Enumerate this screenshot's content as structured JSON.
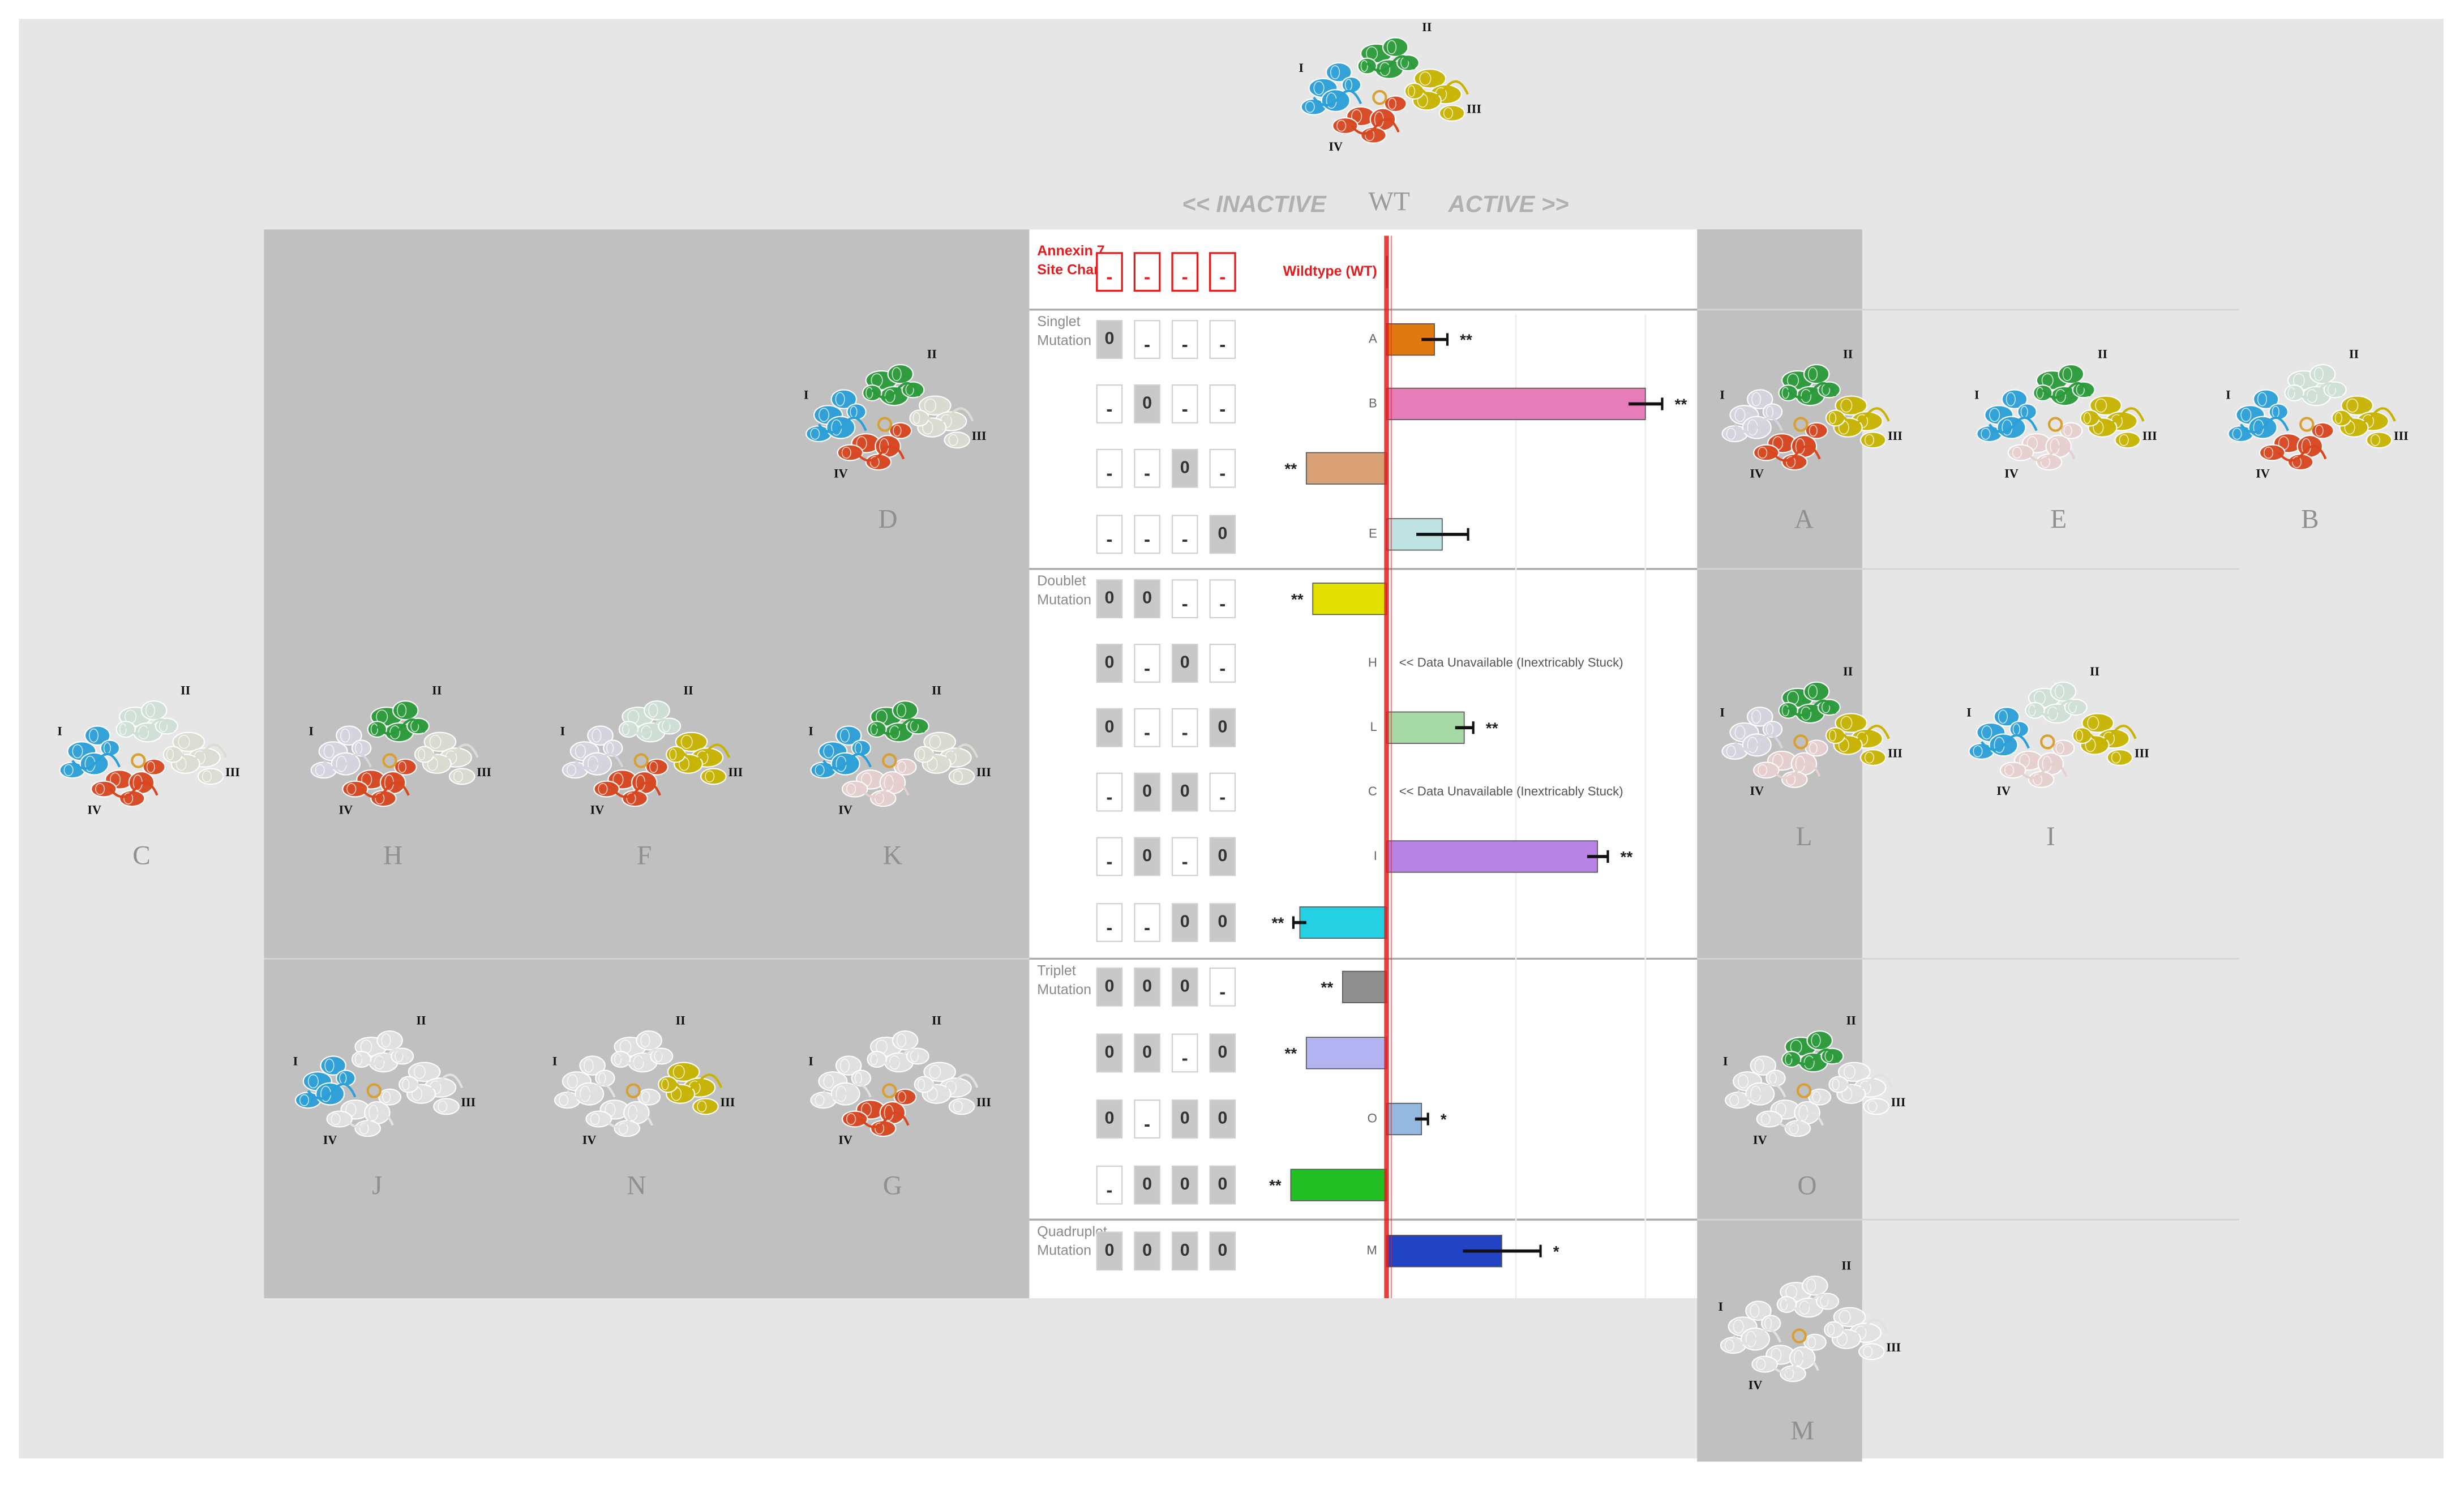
{
  "header": {
    "inactive": "<< INACTIVE",
    "wt": "WT",
    "active": "ACTIVE >>"
  },
  "site_charge_title": "Annexin 7 Site Charge",
  "groups": [
    "Singlet Mutation",
    "Doublet Mutation",
    "Triplet Mutation",
    "Quadruplet Mutation"
  ],
  "site_charges": [
    [
      "-",
      "-",
      "-",
      "-"
    ],
    [
      "0",
      "-",
      "-",
      "-"
    ],
    [
      "-",
      "0",
      "-",
      "-"
    ],
    [
      "-",
      "-",
      "0",
      "-"
    ],
    [
      "-",
      "-",
      "-",
      "0"
    ],
    [
      "0",
      "0",
      "-",
      "-"
    ],
    [
      "0",
      "-",
      "0",
      "-"
    ],
    [
      "0",
      "-",
      "-",
      "0"
    ],
    [
      "-",
      "0",
      "0",
      "-"
    ],
    [
      "-",
      "0",
      "-",
      "0"
    ],
    [
      "-",
      "-",
      "0",
      "0"
    ],
    [
      "0",
      "0",
      "0",
      "-"
    ],
    [
      "0",
      "0",
      "-",
      "0"
    ],
    [
      "0",
      "-",
      "0",
      "0"
    ],
    [
      "-",
      "0",
      "0",
      "0"
    ],
    [
      "0",
      "0",
      "0",
      "0"
    ]
  ],
  "chart_data": {
    "type": "hbar",
    "categories": [
      "Wildtype (WT)",
      "A",
      "B",
      "D",
      "E",
      "F",
      "H",
      "L",
      "C",
      "I",
      "K",
      "G",
      "N",
      "O",
      "J",
      "M"
    ],
    "values": [
      0,
      0.37,
      2.0,
      -0.62,
      0.43,
      -0.57,
      null,
      0.6,
      null,
      1.63,
      -0.67,
      -0.34,
      -0.62,
      0.27,
      -0.74,
      0.89
    ],
    "errors": [
      null,
      0.1,
      0.13,
      null,
      0.2,
      null,
      null,
      0.07,
      null,
      0.08,
      0.05,
      null,
      null,
      0.05,
      null,
      0.3
    ],
    "colors": [
      null,
      "#e07a10",
      "#e67cb8",
      "#d9a276",
      "#bfe3e3",
      "#e3e000",
      null,
      "#a6d9a6",
      null,
      "#b784e6",
      "#25d0e3",
      "#8f8f8f",
      "#b3b3f2",
      "#94b8e0",
      "#22c022",
      "#2244c4"
    ],
    "significance": [
      null,
      "**",
      "**",
      "**",
      null,
      "**",
      null,
      "**",
      null,
      "**",
      "**",
      "**",
      "**",
      "*",
      "**",
      "*"
    ],
    "notes": [
      null,
      null,
      null,
      null,
      null,
      null,
      "<< Data Unavailable (Inextricably Stuck)",
      null,
      "<< Data Unavailable (Inextricably Stuck)",
      null,
      null,
      null,
      null,
      null,
      null,
      null
    ],
    "xlim": [
      -1,
      2.4
    ],
    "zero_line_color": "#e02020"
  },
  "domain_labels": [
    "I",
    "II",
    "III",
    "IV"
  ],
  "structures": [
    {
      "label": "WT",
      "colors": [
        "#2a9fd8",
        "#2a9a3a",
        "#c8b400",
        "#d8451e"
      ]
    },
    {
      "label": "D",
      "colors": [
        "#2a9fd8",
        "#2a9a3a",
        "#dcdcd2",
        "#d8451e"
      ]
    },
    {
      "label": "A",
      "colors": [
        "#d6d6e0",
        "#2a9a3a",
        "#c8b400",
        "#d8451e"
      ]
    },
    {
      "label": "E",
      "colors": [
        "#2a9fd8",
        "#2a9a3a",
        "#c8b400",
        "#e6cfcf"
      ]
    },
    {
      "label": "B",
      "colors": [
        "#2a9fd8",
        "#cfe0d6",
        "#c8b400",
        "#d8451e"
      ]
    },
    {
      "label": "C",
      "colors": [
        "#2a9fd8",
        "#cfe0d6",
        "#dcdcd2",
        "#d8451e"
      ]
    },
    {
      "label": "H",
      "colors": [
        "#d6d6e0",
        "#2a9a3a",
        "#dcdcd2",
        "#d8451e"
      ]
    },
    {
      "label": "F",
      "colors": [
        "#d6d6e0",
        "#cfe0d6",
        "#c8b400",
        "#d8451e"
      ]
    },
    {
      "label": "K",
      "colors": [
        "#2a9fd8",
        "#2a9a3a",
        "#dcdcd2",
        "#e6cfcf"
      ]
    },
    {
      "label": "L",
      "colors": [
        "#d6d6e0",
        "#2a9a3a",
        "#c8b400",
        "#e6cfcf"
      ]
    },
    {
      "label": "I",
      "colors": [
        "#2a9fd8",
        "#cfe0d6",
        "#c8b400",
        "#e6cfcf"
      ]
    },
    {
      "label": "J",
      "colors": [
        "#2a9fd8",
        "#e2e2e2",
        "#e2e2e2",
        "#e2e2e2"
      ]
    },
    {
      "label": "N",
      "colors": [
        "#e2e2e2",
        "#e2e2e2",
        "#c8b400",
        "#e2e2e2"
      ]
    },
    {
      "label": "G",
      "colors": [
        "#e2e2e2",
        "#e2e2e2",
        "#e2e2e2",
        "#d8451e"
      ]
    },
    {
      "label": "O",
      "colors": [
        "#e2e2e2",
        "#2a9a3a",
        "#e2e2e2",
        "#e2e2e2"
      ]
    },
    {
      "label": "M",
      "colors": [
        "#e2e2e2",
        "#e2e2e2",
        "#e2e2e2",
        "#e2e2e2"
      ]
    }
  ]
}
